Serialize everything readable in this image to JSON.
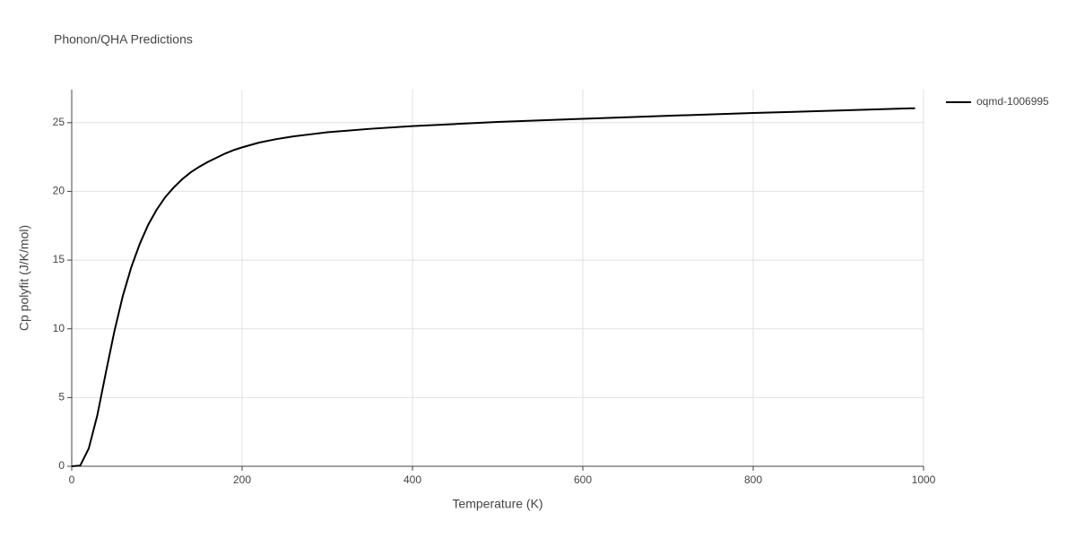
{
  "chart_data": {
    "type": "line",
    "title": "Phonon/QHA Predictions",
    "x_label": "Temperature (K)",
    "y_label": "Cp polyfit (J/K/mol)",
    "x": [
      0,
      10,
      20,
      30,
      40,
      50,
      60,
      70,
      80,
      90,
      100,
      110,
      120,
      130,
      140,
      150,
      160,
      170,
      180,
      190,
      200,
      220,
      240,
      260,
      280,
      300,
      350,
      400,
      450,
      500,
      600,
      700,
      800,
      900,
      990
    ],
    "series": [
      {
        "name": "oqmd-1006995",
        "color": "#000000",
        "values": [
          0,
          0.05,
          1.3,
          3.7,
          6.8,
          9.8,
          12.4,
          14.5,
          16.2,
          17.6,
          18.7,
          19.6,
          20.3,
          20.9,
          21.4,
          21.8,
          22.15,
          22.45,
          22.75,
          23.0,
          23.2,
          23.55,
          23.8,
          24.0,
          24.15,
          24.3,
          24.55,
          24.75,
          24.9,
          25.05,
          25.28,
          25.5,
          25.7,
          25.88,
          26.05
        ]
      }
    ],
    "xlim": [
      0,
      1000
    ],
    "xticks": [
      0,
      200,
      400,
      600,
      800,
      1000
    ],
    "ylim": [
      0,
      27.4
    ],
    "yticks": [
      0,
      5,
      10,
      15,
      20,
      25
    ],
    "grid": true,
    "legend": "right"
  }
}
